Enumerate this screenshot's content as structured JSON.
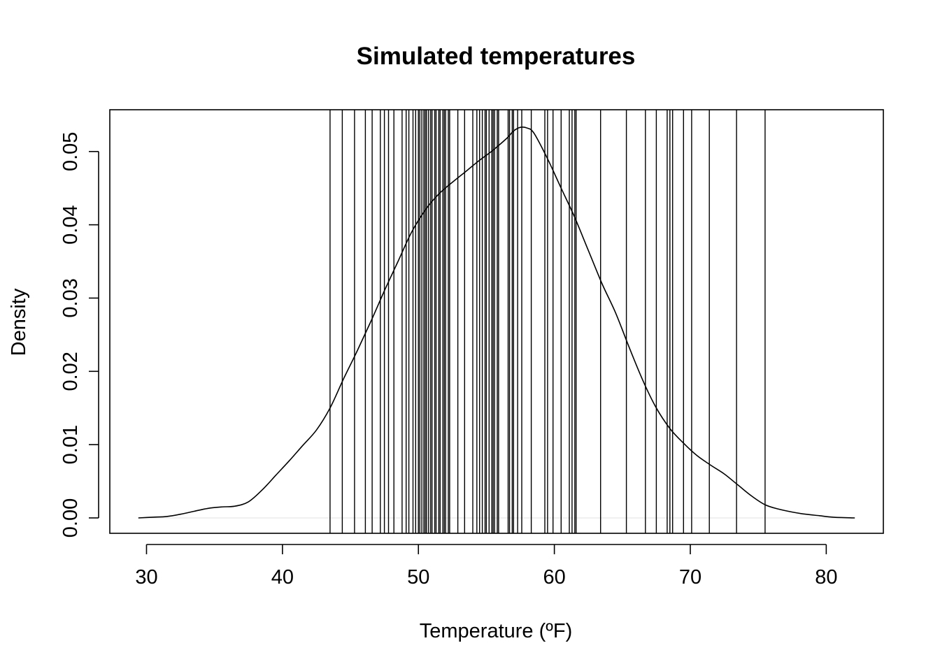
{
  "chart_data": {
    "type": "line",
    "title": "Simulated temperatures",
    "xlabel": "Temperature (ºF)",
    "ylabel": "Density",
    "xlim": [
      27.3,
      84.2
    ],
    "ylim": [
      -0.0021,
      0.0557
    ],
    "x_ticks": [
      30,
      40,
      50,
      60,
      70,
      80
    ],
    "x_tick_labels": [
      "30",
      "40",
      "50",
      "60",
      "70",
      "80"
    ],
    "y_ticks": [
      0.0,
      0.01,
      0.02,
      0.03,
      0.04,
      0.05
    ],
    "y_tick_labels": [
      "0.00",
      "0.01",
      "0.02",
      "0.03",
      "0.04",
      "0.05"
    ],
    "grid": false,
    "legend": "none",
    "series": [
      {
        "kind": "density-curve",
        "x": [
          29.4,
          30.5,
          31.5,
          32.5,
          33.5,
          34.5,
          35.5,
          36.5,
          37.5,
          38.5,
          39.5,
          40.5,
          41.5,
          42.5,
          43.5,
          44.5,
          45.5,
          46.5,
          47.5,
          48.5,
          49.5,
          50.5,
          51.5,
          52.5,
          53.5,
          54.5,
          55.5,
          56.5,
          57.0,
          57.5,
          58.0,
          58.5,
          59.5,
          60.5,
          61.5,
          62.5,
          63.5,
          64.5,
          65.5,
          66.5,
          67.5,
          68.5,
          69.5,
          70.5,
          71.5,
          72.5,
          73.5,
          74.5,
          75.5,
          76.5,
          77.5,
          78.5,
          79.5,
          80.5,
          82.1
        ],
        "y": [
          0.0,
          0.0001,
          0.0002,
          0.0005,
          0.0009,
          0.0013,
          0.0015,
          0.0016,
          0.0022,
          0.0038,
          0.0058,
          0.0078,
          0.0099,
          0.012,
          0.015,
          0.019,
          0.0228,
          0.0268,
          0.031,
          0.035,
          0.039,
          0.042,
          0.0442,
          0.0458,
          0.0473,
          0.0488,
          0.0502,
          0.0518,
          0.0528,
          0.0533,
          0.0532,
          0.0525,
          0.049,
          0.045,
          0.041,
          0.0365,
          0.032,
          0.028,
          0.0233,
          0.0188,
          0.015,
          0.0122,
          0.0102,
          0.0085,
          0.0072,
          0.006,
          0.0045,
          0.003,
          0.0018,
          0.0012,
          0.0008,
          0.0005,
          0.0003,
          0.0001,
          0.0
        ]
      },
      {
        "kind": "rug",
        "x": [
          43.5,
          44.4,
          45.3,
          46.1,
          46.6,
          47.2,
          47.5,
          47.8,
          48.2,
          48.8,
          49.1,
          49.3,
          49.6,
          49.8,
          50.0,
          50.1,
          50.25,
          50.4,
          50.5,
          50.6,
          50.75,
          50.9,
          51.0,
          51.2,
          51.3,
          51.5,
          51.6,
          51.8,
          51.9,
          52.0,
          52.2,
          52.3,
          52.9,
          53.4,
          54.0,
          54.3,
          54.5,
          54.7,
          54.9,
          55.0,
          55.2,
          55.4,
          55.5,
          55.6,
          55.8,
          55.9,
          56.6,
          56.7,
          56.9,
          57.0,
          57.3,
          57.6,
          58.3,
          59.3,
          59.5,
          59.9,
          60.5,
          61.1,
          61.3,
          61.5,
          61.6,
          63.4,
          65.3,
          66.7,
          67.5,
          68.3,
          68.5,
          68.7,
          69.5,
          70.1,
          71.4,
          73.4,
          75.5
        ]
      }
    ]
  }
}
